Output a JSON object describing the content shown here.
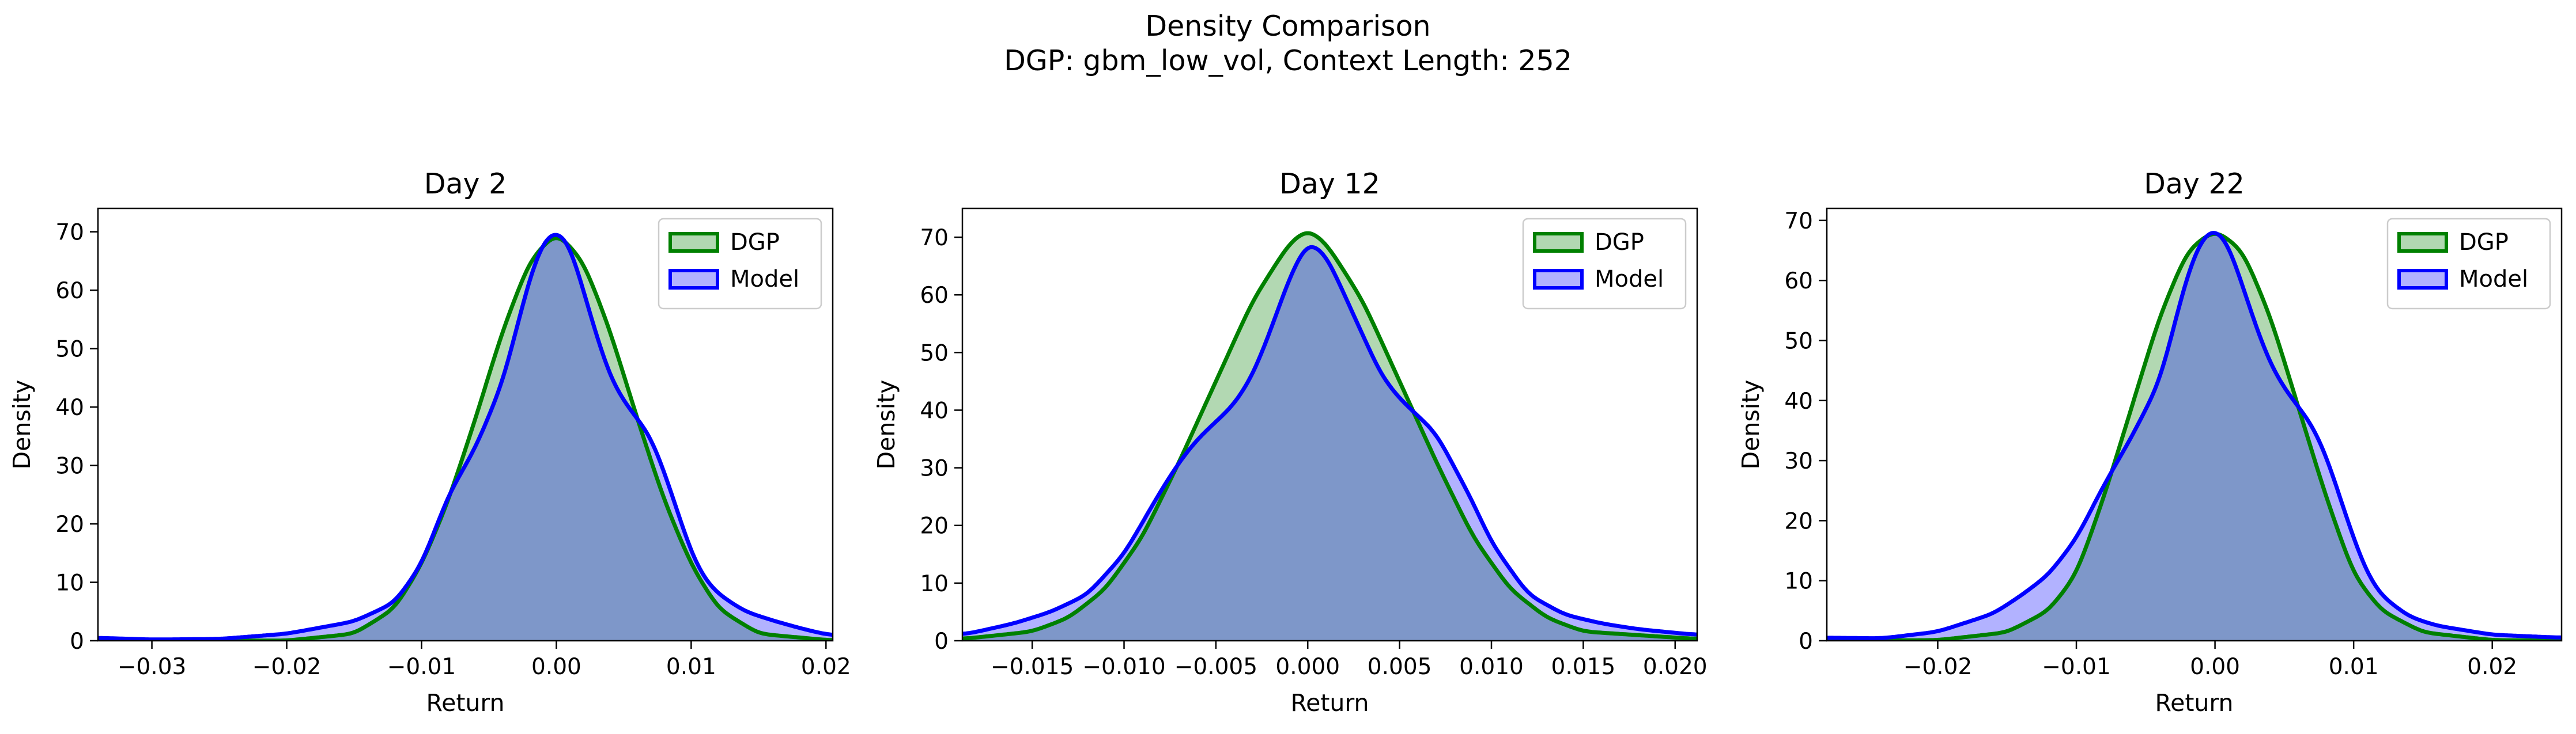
{
  "figure": {
    "title_line1": "Density Comparison",
    "title_line2": "DGP: gbm_low_vol, Context Length: 252"
  },
  "colors": {
    "dgp_line": "#008000",
    "dgp_fill": "#b2d8b2",
    "model_line": "#0000ff",
    "model_fill": "#b2b2ff",
    "overlap_fill": "#7e97c9",
    "overlap_line": "#0f5559"
  },
  "chart_data": [
    {
      "type": "area",
      "title": "Day 2",
      "xlabel": "Return",
      "ylabel": "Density",
      "xlim": [
        -0.034,
        0.0205
      ],
      "ylim": [
        0,
        74
      ],
      "xticks": [
        -0.03,
        -0.02,
        -0.01,
        0.0,
        0.01,
        0.02
      ],
      "xtick_labels": [
        "−0.03",
        "−0.02",
        "−0.01",
        "0.00",
        "0.01",
        "0.02"
      ],
      "yticks": [
        0,
        10,
        20,
        30,
        40,
        50,
        60,
        70
      ],
      "legend": "top-right",
      "series": [
        {
          "name": "DGP",
          "x": [
            -0.034,
            -0.02,
            -0.015,
            -0.012,
            -0.01,
            -0.008,
            -0.006,
            -0.004,
            -0.002,
            0.0,
            0.002,
            0.004,
            0.006,
            0.008,
            0.01,
            0.012,
            0.015,
            0.0205
          ],
          "y": [
            0,
            0.02,
            1.2,
            5.5,
            13.0,
            24.0,
            38.0,
            53.0,
            65.0,
            70.0,
            65.0,
            53.0,
            38.0,
            24.0,
            13.0,
            5.5,
            1.2,
            0.02
          ]
        },
        {
          "name": "Model",
          "x": [
            -0.034,
            -0.03,
            -0.025,
            -0.02,
            -0.015,
            -0.012,
            -0.01,
            -0.008,
            -0.006,
            -0.004,
            -0.003,
            -0.002,
            -0.001,
            0.0,
            0.001,
            0.002,
            0.003,
            0.004,
            0.005,
            0.006,
            0.007,
            0.008,
            0.009,
            0.01,
            0.011,
            0.012,
            0.014,
            0.016,
            0.018,
            0.0205
          ],
          "y": [
            0.5,
            0.2,
            0.3,
            1.2,
            3.3,
            6.5,
            13.0,
            25.0,
            33.0,
            44.0,
            53.0,
            62.0,
            68.5,
            70.5,
            68.0,
            60.0,
            52.0,
            45.0,
            41.0,
            38.0,
            35.0,
            29.0,
            22.0,
            15.0,
            10.5,
            8.0,
            5.0,
            3.5,
            2.2,
            0.8
          ]
        }
      ]
    },
    {
      "type": "area",
      "title": "Day 12",
      "xlabel": "Return",
      "ylabel": "Density",
      "xlim": [
        -0.0188,
        0.0212
      ],
      "ylim": [
        0,
        75
      ],
      "xticks": [
        -0.015,
        -0.01,
        -0.005,
        0.0,
        0.005,
        0.01,
        0.015,
        0.02
      ],
      "xtick_labels": [
        "−0.015",
        "−0.010",
        "−0.005",
        "0.000",
        "0.005",
        "0.010",
        "0.015",
        "0.020"
      ],
      "yticks": [
        0,
        10,
        20,
        30,
        40,
        50,
        60,
        70
      ],
      "legend": "top-right",
      "series": [
        {
          "name": "DGP",
          "x": [
            -0.0188,
            -0.015,
            -0.013,
            -0.011,
            -0.009,
            -0.007,
            -0.005,
            -0.003,
            -0.001,
            0.0,
            0.001,
            0.003,
            0.005,
            0.007,
            0.009,
            0.011,
            0.013,
            0.015,
            0.0212
          ],
          "y": [
            0.3,
            1.6,
            4.0,
            9.0,
            18.0,
            31.0,
            45.0,
            59.0,
            69.0,
            71.5,
            69.0,
            59.0,
            45.0,
            31.0,
            18.0,
            9.0,
            4.0,
            1.6,
            0.3
          ]
        },
        {
          "name": "Model",
          "x": [
            -0.0188,
            -0.016,
            -0.014,
            -0.012,
            -0.01,
            -0.008,
            -0.007,
            -0.006,
            -0.005,
            -0.004,
            -0.003,
            -0.002,
            -0.001,
            0.0,
            0.001,
            0.002,
            0.003,
            0.004,
            0.005,
            0.006,
            0.007,
            0.008,
            0.009,
            0.01,
            0.012,
            0.014,
            0.016,
            0.018,
            0.0212
          ],
          "y": [
            1.0,
            3.0,
            5.0,
            8.0,
            15.0,
            26.0,
            31.0,
            35.0,
            38.0,
            41.0,
            46.0,
            54.0,
            63.0,
            69.5,
            67.0,
            60.0,
            53.0,
            46.0,
            42.0,
            39.0,
            36.0,
            30.0,
            24.0,
            17.0,
            8.0,
            4.5,
            3.0,
            2.0,
            1.0
          ]
        }
      ]
    },
    {
      "type": "area",
      "title": "Day 22",
      "xlabel": "Return",
      "ylabel": "Density",
      "xlim": [
        -0.028,
        0.025
      ],
      "ylim": [
        0,
        72
      ],
      "xticks": [
        -0.02,
        -0.01,
        0.0,
        0.01,
        0.02
      ],
      "xtick_labels": [
        "−0.02",
        "−0.01",
        "0.00",
        "0.01",
        "0.02"
      ],
      "yticks": [
        0,
        10,
        20,
        30,
        40,
        50,
        60,
        70
      ],
      "legend": "top-right",
      "series": [
        {
          "name": "DGP",
          "x": [
            -0.028,
            -0.02,
            -0.015,
            -0.012,
            -0.01,
            -0.008,
            -0.006,
            -0.004,
            -0.002,
            0.0,
            0.002,
            0.004,
            0.006,
            0.008,
            0.01,
            0.012,
            0.015,
            0.02,
            0.025
          ],
          "y": [
            0,
            0.1,
            1.4,
            5.0,
            11.0,
            24.0,
            39.0,
            54.0,
            65.0,
            68.5,
            65.0,
            54.0,
            39.0,
            24.0,
            11.0,
            5.0,
            1.4,
            0.1,
            0
          ]
        },
        {
          "name": "Model",
          "x": [
            -0.028,
            -0.024,
            -0.02,
            -0.016,
            -0.014,
            -0.012,
            -0.01,
            -0.008,
            -0.006,
            -0.004,
            -0.003,
            -0.002,
            -0.001,
            0.0,
            0.001,
            0.002,
            0.003,
            0.004,
            0.005,
            0.006,
            0.007,
            0.008,
            0.009,
            0.01,
            0.011,
            0.012,
            0.014,
            0.016,
            0.02,
            0.025
          ],
          "y": [
            0.5,
            0.4,
            1.5,
            4.5,
            7.5,
            11.0,
            17.0,
            26.0,
            34.0,
            43.0,
            52.0,
            61.0,
            67.0,
            69.0,
            66.0,
            59.0,
            52.0,
            46.0,
            42.0,
            39.0,
            36.0,
            31.0,
            24.0,
            17.0,
            11.0,
            7.5,
            4.0,
            2.5,
            1.0,
            0.5
          ]
        }
      ]
    }
  ]
}
